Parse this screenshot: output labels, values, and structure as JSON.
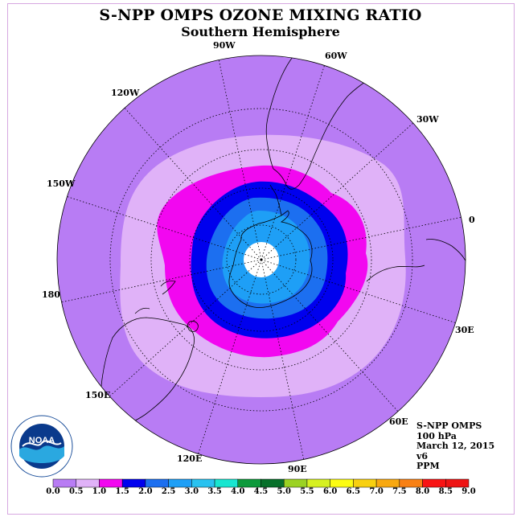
{
  "title": "S-NPP OMPS OZONE MIXING RATIO",
  "subtitle": "Southern Hemisphere",
  "longitude_labels": [
    "90W",
    "60W",
    "30W",
    "0",
    "30E",
    "60E",
    "90E",
    "120E",
    "150E",
    "180",
    "150W",
    "120W"
  ],
  "info": {
    "instrument": "S-NPP OMPS",
    "level": "100 hPa",
    "date": "March 12, 2015",
    "version": "v6",
    "units": "PPM"
  },
  "logo": {
    "text": "NOAA"
  },
  "colorbar": {
    "ticks": [
      "0.0",
      "0.5",
      "1.0",
      "1.5",
      "2.0",
      "2.5",
      "3.0",
      "3.5",
      "4.0",
      "4.5",
      "5.0",
      "5.5",
      "6.0",
      "6.5",
      "7.0",
      "7.5",
      "8.0",
      "8.5",
      "9.0"
    ],
    "colors": [
      "#b87cf4",
      "#e0b2f8",
      "#f207f0",
      "#0000ee",
      "#1c6ff0",
      "#1e9ff6",
      "#29c2f0",
      "#18e6d0",
      "#0d9a3c",
      "#07702a",
      "#9bd223",
      "#d6f021",
      "#fcfc13",
      "#f8d010",
      "#f8a810",
      "#f88014",
      "#f81414",
      "#ee1414",
      "#8a5e48"
    ]
  },
  "map_colors": {
    "background_level": "#b87cf4",
    "ring_0_5": "#e0b2f8",
    "ring_1_0": "#f207f0",
    "ring_1_5": "#0000ee",
    "ring_2_0": "#1c6ff0",
    "pole_missing": "#ffffff"
  }
}
